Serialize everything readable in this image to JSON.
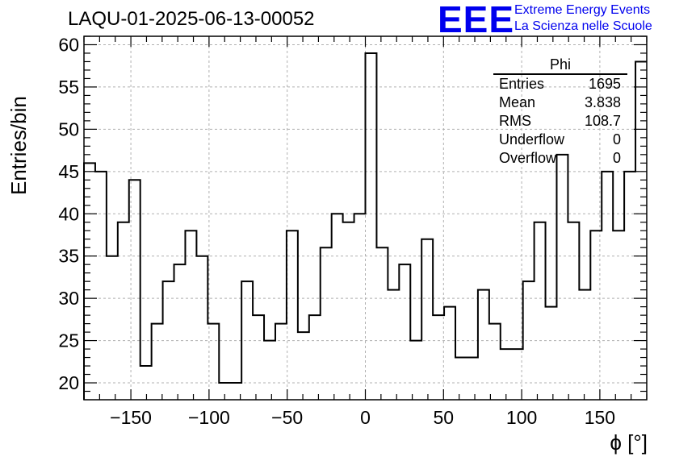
{
  "header": {
    "title": "LAQU-01-2025-06-13-00052",
    "logo_text": "EEE",
    "logo_line1": "Extreme Energy Events",
    "logo_line2": "La Scienza nelle Scuole"
  },
  "stats": {
    "name": "Phi",
    "rows": [
      {
        "label": "Entries",
        "value": "1695"
      },
      {
        "label": "Mean",
        "value": "3.838"
      },
      {
        "label": "RMS",
        "value": "108.7"
      },
      {
        "label": "Underflow",
        "value": "0"
      },
      {
        "label": "Overflow",
        "value": "0"
      }
    ]
  },
  "chart_data": {
    "type": "histogram",
    "title": "LAQU-01-2025-06-13-00052",
    "xlabel": "ϕ [°]",
    "ylabel": "Entries/bin",
    "xlim": [
      -180,
      180
    ],
    "ylim": [
      18,
      61
    ],
    "bin_width": 7.2,
    "x_ticks": [
      -150,
      -100,
      -50,
      0,
      50,
      100,
      150
    ],
    "x_tick_labels": [
      "−150",
      "−100",
      "−50",
      "0",
      "50",
      "100",
      "150"
    ],
    "y_ticks": [
      20,
      25,
      30,
      35,
      40,
      45,
      50,
      55,
      60
    ],
    "y_tick_labels": [
      "20",
      "25",
      "30",
      "35",
      "40",
      "45",
      "50",
      "55",
      "60"
    ],
    "grid": true,
    "values": [
      46,
      45,
      35,
      39,
      44,
      22,
      27,
      32,
      34,
      38,
      35,
      27,
      20,
      20,
      32,
      28,
      25,
      27,
      38,
      26,
      28,
      36,
      40,
      39,
      40,
      59,
      36,
      31,
      34,
      25,
      37,
      28,
      29,
      23,
      23,
      31,
      27,
      24,
      24,
      32,
      39,
      29,
      47,
      39,
      31,
      38,
      45,
      38,
      45,
      58
    ]
  }
}
